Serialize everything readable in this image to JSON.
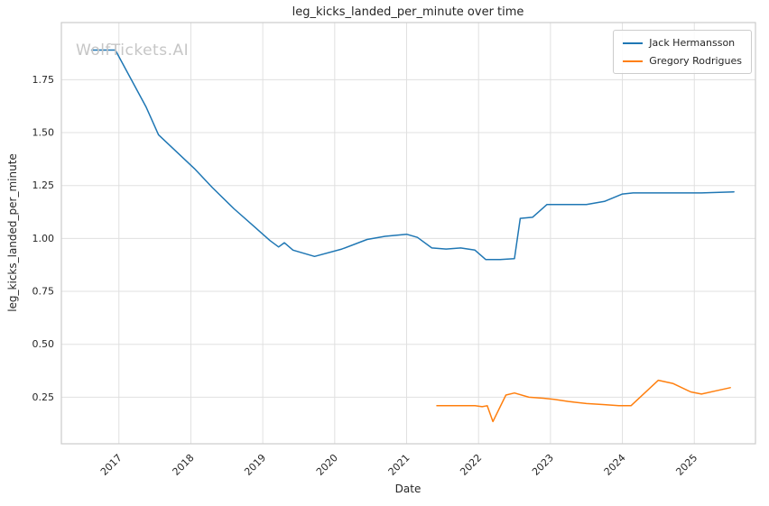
{
  "watermark": "WolfTickets.AI",
  "chart_data": {
    "type": "line",
    "title": "leg_kicks_landed_per_minute over time",
    "xlabel": "Date",
    "ylabel": "leg_kicks_landed_per_minute",
    "xlim": [
      2016.2,
      2025.85
    ],
    "ylim": [
      0.03,
      2.02
    ],
    "grid": true,
    "legend_position": "upper right",
    "x_ticks": [
      {
        "value": 2017,
        "label": "2017"
      },
      {
        "value": 2018,
        "label": "2018"
      },
      {
        "value": 2019,
        "label": "2019"
      },
      {
        "value": 2020,
        "label": "2020"
      },
      {
        "value": 2021,
        "label": "2021"
      },
      {
        "value": 2022,
        "label": "2022"
      },
      {
        "value": 2023,
        "label": "2023"
      },
      {
        "value": 2024,
        "label": "2024"
      },
      {
        "value": 2025,
        "label": "2025"
      }
    ],
    "y_ticks": [
      {
        "value": 0.25,
        "label": "0.25"
      },
      {
        "value": 0.5,
        "label": "0.50"
      },
      {
        "value": 0.75,
        "label": "0.75"
      },
      {
        "value": 1.0,
        "label": "1.00"
      },
      {
        "value": 1.25,
        "label": "1.25"
      },
      {
        "value": 1.5,
        "label": "1.50"
      },
      {
        "value": 1.75,
        "label": "1.75"
      }
    ],
    "colors": {
      "grid": "#e0e0e0",
      "border": "#cccccc",
      "text": "#262626"
    },
    "series": [
      {
        "name": "Jack Hermansson",
        "color": "#1f77b4",
        "points": [
          [
            2016.62,
            1.89
          ],
          [
            2016.95,
            1.89
          ],
          [
            2017.38,
            1.62
          ],
          [
            2017.55,
            1.49
          ],
          [
            2017.8,
            1.41
          ],
          [
            2018.05,
            1.33
          ],
          [
            2018.3,
            1.24
          ],
          [
            2018.6,
            1.14
          ],
          [
            2018.9,
            1.05
          ],
          [
            2019.1,
            0.99
          ],
          [
            2019.22,
            0.96
          ],
          [
            2019.3,
            0.98
          ],
          [
            2019.42,
            0.945
          ],
          [
            2019.72,
            0.915
          ],
          [
            2020.1,
            0.95
          ],
          [
            2020.45,
            0.995
          ],
          [
            2020.7,
            1.01
          ],
          [
            2021.0,
            1.02
          ],
          [
            2021.15,
            1.005
          ],
          [
            2021.35,
            0.955
          ],
          [
            2021.55,
            0.95
          ],
          [
            2021.75,
            0.955
          ],
          [
            2021.95,
            0.945
          ],
          [
            2022.1,
            0.9
          ],
          [
            2022.3,
            0.9
          ],
          [
            2022.5,
            0.905
          ],
          [
            2022.58,
            1.095
          ],
          [
            2022.75,
            1.1
          ],
          [
            2022.95,
            1.16
          ],
          [
            2023.2,
            1.16
          ],
          [
            2023.5,
            1.16
          ],
          [
            2023.75,
            1.175
          ],
          [
            2024.0,
            1.21
          ],
          [
            2024.15,
            1.215
          ],
          [
            2024.6,
            1.215
          ],
          [
            2025.1,
            1.215
          ],
          [
            2025.55,
            1.22
          ]
        ]
      },
      {
        "name": "Gregory Rodrigues",
        "color": "#ff7f0e",
        "points": [
          [
            2021.42,
            0.21
          ],
          [
            2021.7,
            0.21
          ],
          [
            2021.95,
            0.21
          ],
          [
            2022.05,
            0.205
          ],
          [
            2022.12,
            0.21
          ],
          [
            2022.2,
            0.135
          ],
          [
            2022.38,
            0.26
          ],
          [
            2022.5,
            0.27
          ],
          [
            2022.7,
            0.25
          ],
          [
            2022.9,
            0.245
          ],
          [
            2023.05,
            0.24
          ],
          [
            2023.25,
            0.23
          ],
          [
            2023.5,
            0.22
          ],
          [
            2023.75,
            0.215
          ],
          [
            2023.95,
            0.21
          ],
          [
            2024.12,
            0.21
          ],
          [
            2024.5,
            0.33
          ],
          [
            2024.7,
            0.315
          ],
          [
            2024.95,
            0.275
          ],
          [
            2025.1,
            0.265
          ],
          [
            2025.3,
            0.28
          ],
          [
            2025.5,
            0.295
          ]
        ]
      }
    ]
  }
}
